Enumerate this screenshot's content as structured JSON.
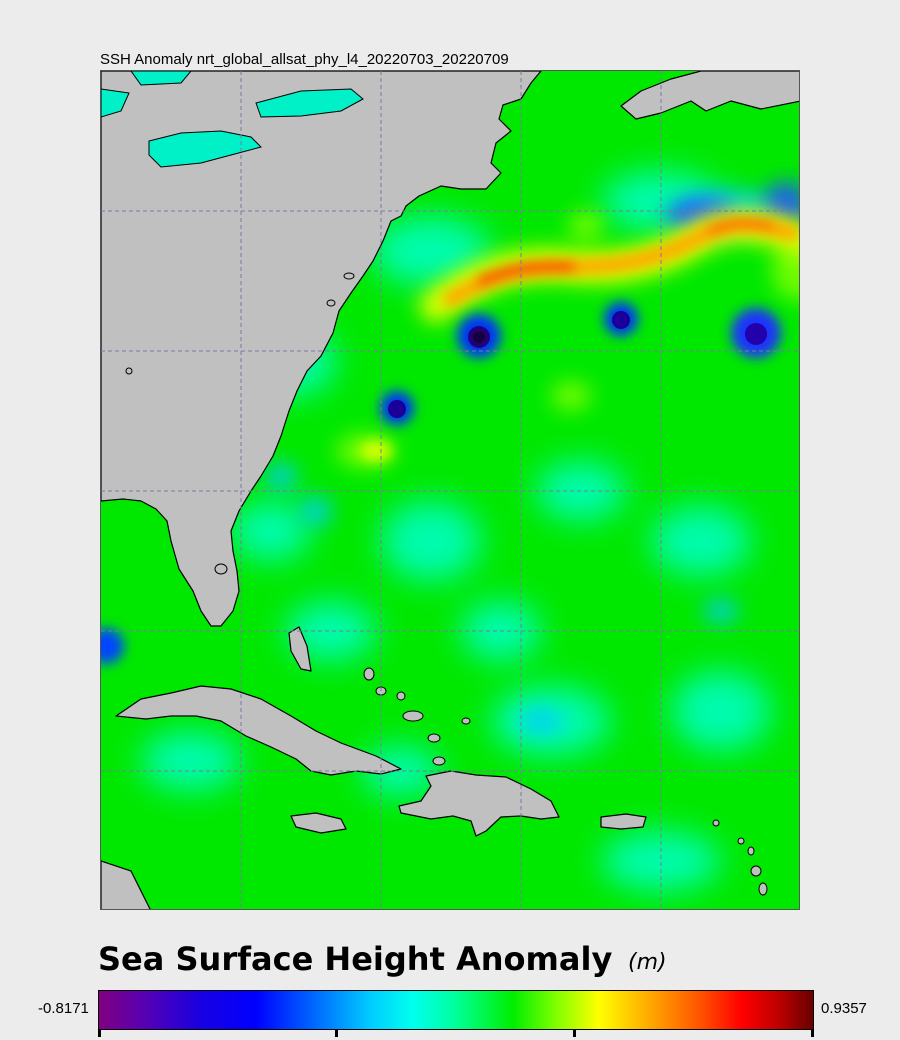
{
  "map": {
    "title": "SSH Anomaly nrt_global_allsat_phy_l4_20220703_20220709",
    "land_color": "#c0c0c0",
    "coastline_color": "#000000",
    "graticule_color": "#7a7aa0"
  },
  "legend": {
    "title": "Sea Surface Height Anomaly",
    "unit": "(m)",
    "min_label": "-0.8171",
    "max_label": "0.9357",
    "min_value": -0.8171,
    "max_value": 0.9357,
    "colormap": [
      "#800080",
      "#0000ff",
      "#00ccff",
      "#00ffee",
      "#00ee00",
      "#ffff00",
      "#ff8800",
      "#ff0000",
      "#6a0000"
    ]
  }
}
